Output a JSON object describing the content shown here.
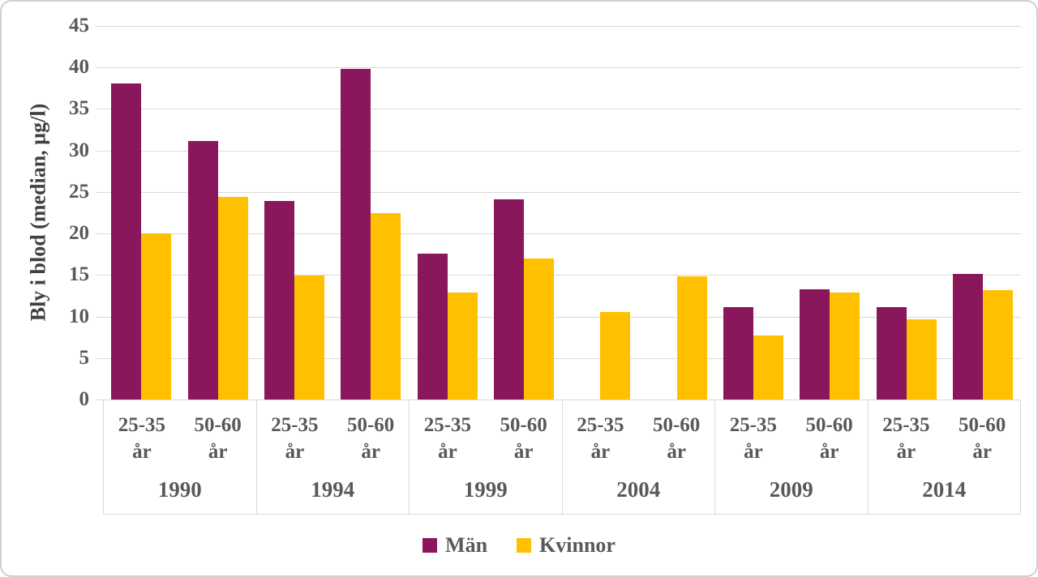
{
  "chart_data": {
    "type": "bar",
    "title": "",
    "ylabel": "Bly i blod (median, µg/l)",
    "xlabel": "",
    "ylim": [
      0,
      45
    ],
    "yticks": [
      0,
      5,
      10,
      15,
      20,
      25,
      30,
      35,
      40,
      45
    ],
    "grid": true,
    "legend_position": "bottom",
    "group_years": [
      "1990",
      "1994",
      "1999",
      "2004",
      "2009",
      "2014"
    ],
    "subgroups": [
      {
        "line1": "25-35",
        "line2": "år"
      },
      {
        "line1": "50-60",
        "line2": "år"
      }
    ],
    "categories": [
      "1990 25-35 år",
      "1990 50-60 år",
      "1994 25-35 år",
      "1994 50-60 år",
      "1999 25-35 år",
      "1999 50-60 år",
      "2004 25-35 år",
      "2004 50-60 år",
      "2009 25-35 år",
      "2009 50-60 år",
      "2014 25-35 år",
      "2014 50-60 år"
    ],
    "series": [
      {
        "name": "Män",
        "color": "#8A175C",
        "values": [
          38.1,
          31.1,
          23.9,
          39.8,
          17.6,
          24.1,
          null,
          null,
          11.1,
          13.3,
          11.1,
          15.1
        ]
      },
      {
        "name": "Kvinnor",
        "color": "#FFC000",
        "values": [
          20.0,
          24.4,
          14.9,
          22.5,
          12.9,
          17.0,
          10.5,
          14.8,
          7.7,
          12.9,
          9.7,
          13.2
        ]
      }
    ]
  },
  "colors": {
    "men": "#8A175C",
    "women": "#FFC000",
    "axis_text": "#595959",
    "title_text": "#404040",
    "gridline": "#D9D9D9",
    "frame_border": "#CFCFCF"
  }
}
